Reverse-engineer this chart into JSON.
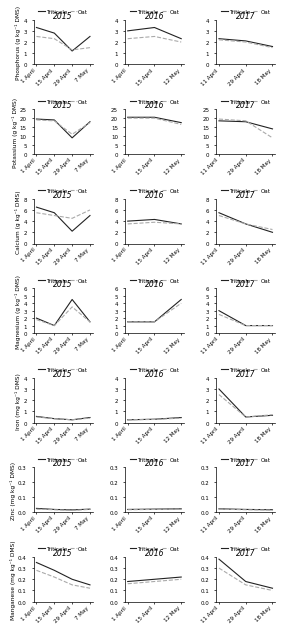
{
  "years": [
    "2015",
    "2016",
    "2017"
  ],
  "minerals_short": [
    "Phosphorus",
    "Potassium",
    "Calcium",
    "Magnesium",
    "Iron",
    "Zinc",
    "Manganese"
  ],
  "ylabels": [
    "Phosphorus (g kg⁻¹ DMS)",
    "Potassium (g kg⁻¹ DMS)",
    "Calcium (g kg⁻¹ DMS)",
    "Magnesium (g kg⁻¹ DMS)",
    "Iron (mg kg⁻¹ DMS)",
    "Zinc (mg kg⁻¹ DMS)",
    "Manganese (mg kg⁻¹ DMS)"
  ],
  "xtick_labels": {
    "2015": [
      "1 April",
      "15 April",
      "29 April",
      "7 May"
    ],
    "2016": [
      "1 April",
      "15 April",
      "12 May"
    ],
    "2017": [
      "11 April",
      "29 April",
      "18 May"
    ]
  },
  "x_vals": {
    "2015": [
      0,
      1,
      2,
      3
    ],
    "2016": [
      0,
      1,
      2
    ],
    "2017": [
      0,
      1,
      2
    ]
  },
  "data": {
    "Phosphorus": {
      "2015": {
        "triticale": [
          3.3,
          2.8,
          1.2,
          2.5
        ],
        "oat": [
          2.5,
          2.3,
          1.3,
          1.5
        ]
      },
      "2016": {
        "triticale": [
          3.0,
          3.3,
          2.3
        ],
        "oat": [
          2.3,
          2.5,
          2.0
        ]
      },
      "2017": {
        "triticale": [
          2.3,
          2.1,
          1.6
        ],
        "oat": [
          2.2,
          2.0,
          1.5
        ]
      }
    },
    "Potassium": {
      "2015": {
        "triticale": [
          19.5,
          19.0,
          9.0,
          18.0
        ],
        "oat": [
          19.0,
          18.5,
          11.0,
          17.5
        ]
      },
      "2016": {
        "triticale": [
          20.5,
          20.5,
          17.5
        ],
        "oat": [
          20.0,
          20.0,
          16.5
        ]
      },
      "2017": {
        "triticale": [
          18.5,
          18.0,
          14.0
        ],
        "oat": [
          19.5,
          18.5,
          9.0
        ]
      }
    },
    "Calcium": {
      "2015": {
        "triticale": [
          6.5,
          5.5,
          2.2,
          5.0
        ],
        "oat": [
          5.5,
          5.0,
          4.5,
          6.0
        ]
      },
      "2016": {
        "triticale": [
          4.0,
          4.3,
          3.5
        ],
        "oat": [
          3.5,
          3.8,
          3.5
        ]
      },
      "2017": {
        "triticale": [
          5.5,
          3.5,
          2.0
        ],
        "oat": [
          5.0,
          3.5,
          2.5
        ]
      }
    },
    "Magnesium": {
      "2015": {
        "triticale": [
          2.0,
          1.0,
          4.5,
          1.5
        ],
        "oat": [
          1.8,
          1.0,
          3.5,
          1.5
        ]
      },
      "2016": {
        "triticale": [
          1.5,
          1.5,
          4.5
        ],
        "oat": [
          1.5,
          1.5,
          4.0
        ]
      },
      "2017": {
        "triticale": [
          3.0,
          1.0,
          1.0
        ],
        "oat": [
          2.5,
          1.0,
          1.0
        ]
      }
    },
    "Iron": {
      "2015": {
        "triticale": [
          0.55,
          0.35,
          0.25,
          0.45
        ],
        "oat": [
          0.5,
          0.35,
          0.25,
          0.4
        ]
      },
      "2016": {
        "triticale": [
          0.25,
          0.3,
          0.45
        ],
        "oat": [
          0.25,
          0.28,
          0.4
        ]
      },
      "2017": {
        "triticale": [
          3.0,
          0.5,
          0.65
        ],
        "oat": [
          2.5,
          0.5,
          0.7
        ]
      }
    },
    "Zinc": {
      "2015": {
        "triticale": [
          0.025,
          0.018,
          0.015,
          0.02
        ],
        "oat": [
          0.02,
          0.016,
          0.012,
          0.018
        ]
      },
      "2016": {
        "triticale": [
          0.018,
          0.02,
          0.022
        ],
        "oat": [
          0.016,
          0.018,
          0.02
        ]
      },
      "2017": {
        "triticale": [
          0.022,
          0.018,
          0.016
        ],
        "oat": [
          0.02,
          0.016,
          0.014
        ]
      }
    },
    "Manganese": {
      "2015": {
        "triticale": [
          0.35,
          0.28,
          0.2,
          0.15
        ],
        "oat": [
          0.28,
          0.22,
          0.15,
          0.12
        ]
      },
      "2016": {
        "triticale": [
          0.18,
          0.2,
          0.22
        ],
        "oat": [
          0.16,
          0.18,
          0.2
        ]
      },
      "2017": {
        "triticale": [
          0.38,
          0.18,
          0.12
        ],
        "oat": [
          0.3,
          0.15,
          0.1
        ]
      }
    }
  },
  "ylims": {
    "Phosphorus": [
      0,
      4
    ],
    "Potassium": [
      0,
      25
    ],
    "Calcium": [
      0,
      8
    ],
    "Magnesium": [
      0,
      6
    ],
    "Iron": [
      0,
      4
    ],
    "Zinc": [
      0,
      0.3
    ],
    "Manganese": [
      0,
      0.4
    ]
  },
  "yticks": {
    "Phosphorus": [
      0,
      1,
      2,
      3,
      4
    ],
    "Potassium": [
      0,
      5,
      10,
      15,
      20,
      25
    ],
    "Calcium": [
      0,
      2,
      4,
      6,
      8
    ],
    "Magnesium": [
      0,
      1,
      2,
      3,
      4,
      5,
      6
    ],
    "Iron": [
      0,
      1,
      2,
      3,
      4
    ],
    "Zinc": [
      0.0,
      0.1,
      0.2,
      0.3
    ],
    "Manganese": [
      0.0,
      0.1,
      0.2,
      0.3,
      0.4
    ]
  },
  "triticale_color": "#222222",
  "oat_color": "#aaaaaa",
  "triticale_style": "-",
  "oat_style": "--",
  "linewidth": 0.8,
  "legend_fontsize": 4.0,
  "title_fontsize": 5.5,
  "ylabel_fontsize": 4.2,
  "tick_fontsize": 4.0
}
